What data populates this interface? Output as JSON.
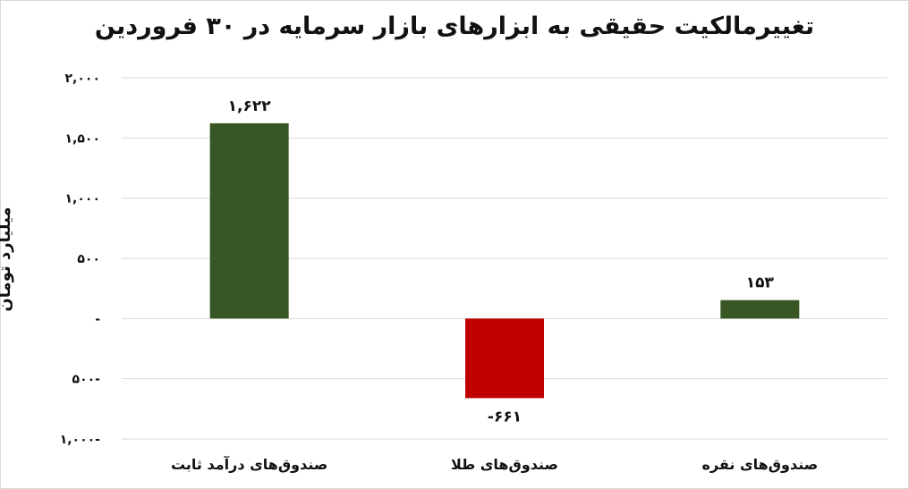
{
  "chart_data": {
    "type": "bar",
    "title": "تغییرمالکیت حقیقی به ابزارهای بازار سرمایه در ۳۰ فروردین",
    "ylabel": "میلیارد تومان",
    "xlabel": "",
    "categories": [
      "صندوق‌های درآمد ثابت",
      "صندوق‌های طلا",
      "صندوق‌های نقره"
    ],
    "values": [
      1622,
      -661,
      153
    ],
    "data_labels": [
      "۱,۶۲۲",
      "-۶۶۱",
      "۱۵۳"
    ],
    "ylim": [
      -1000,
      2000
    ],
    "yticks": [
      2000,
      1500,
      1000,
      500,
      0,
      -500,
      -1000
    ],
    "ytick_labels": [
      "۲,۰۰۰",
      "۱,۵۰۰",
      "۱,۰۰۰",
      "۵۰۰",
      "-",
      "۵۰۰-",
      "۱,۰۰۰-"
    ],
    "bar_colors": [
      "#375623",
      "#c00000",
      "#375623"
    ],
    "grid": "horizontal",
    "legend": "none"
  }
}
